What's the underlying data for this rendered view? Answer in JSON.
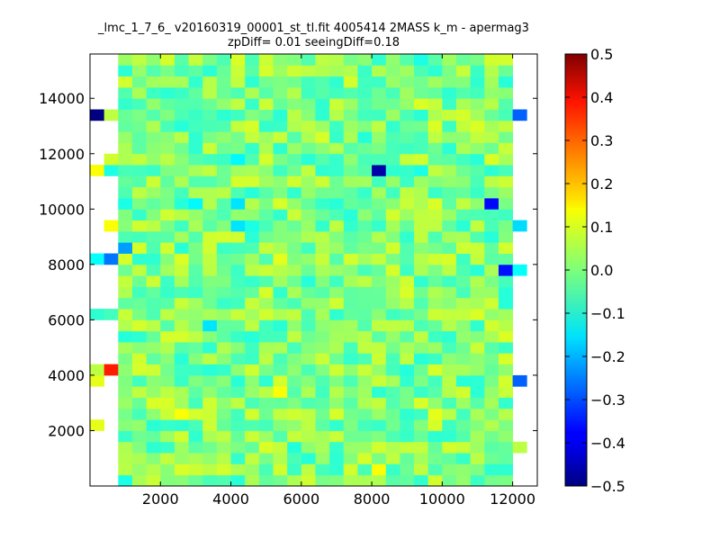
{
  "chart_data": {
    "type": "heatmap",
    "title_line1": "_lmc_1_7_6_ v20160319_00001_st_tl.fit 4005414 2MASS k_m - apermag3",
    "title_line2": "zpDiff= 0.01 seeingDiff=0.18",
    "xlabel": "",
    "ylabel": "",
    "xlim": [
      0,
      12700
    ],
    "ylim": [
      0,
      15600
    ],
    "xticks": [
      "2000",
      "4000",
      "6000",
      "8000",
      "10000",
      "12000"
    ],
    "yticks": [
      "2000",
      "4000",
      "6000",
      "8000",
      "10000",
      "12000",
      "14000"
    ],
    "grid": false,
    "colorbar": {
      "colormap": "jet",
      "range": [
        -0.5,
        0.5
      ],
      "ticks": [
        "0.5",
        "0.4",
        "0.3",
        "0.2",
        "0.1",
        "0.0",
        "−0.1",
        "−0.2",
        "−0.3",
        "−0.4",
        "−0.5"
      ]
    },
    "cell_size": 400,
    "nx": 31,
    "ny": 39,
    "base_value": 0.0,
    "overrides": [
      {
        "x": 200,
        "y": 13400,
        "v": -0.5
      },
      {
        "x": 600,
        "y": 13400,
        "v": 0.06
      },
      {
        "x": 12200,
        "y": 13400,
        "v": -0.28
      },
      {
        "x": 200,
        "y": 11400,
        "v": 0.12
      },
      {
        "x": 600,
        "y": 11800,
        "v": 0.08
      },
      {
        "x": 8200,
        "y": 11400,
        "v": -0.46
      },
      {
        "x": 12600,
        "y": 11400,
        "v": 0.08
      },
      {
        "x": 12600,
        "y": 11800,
        "v": 0.1
      },
      {
        "x": 4200,
        "y": 10200,
        "v": -0.15
      },
      {
        "x": 4200,
        "y": 11800,
        "v": -0.13
      },
      {
        "x": 3000,
        "y": 10200,
        "v": -0.13
      },
      {
        "x": 11400,
        "y": 10200,
        "v": -0.37
      },
      {
        "x": 600,
        "y": 9400,
        "v": 0.12
      },
      {
        "x": 1000,
        "y": 10200,
        "v": -0.1
      },
      {
        "x": 4200,
        "y": 9400,
        "v": -0.15
      },
      {
        "x": 4600,
        "y": 9400,
        "v": -0.1
      },
      {
        "x": 12200,
        "y": 9400,
        "v": -0.16
      },
      {
        "x": 12600,
        "y": 9400,
        "v": 0.08
      },
      {
        "x": 1000,
        "y": 8600,
        "v": -0.22
      },
      {
        "x": 200,
        "y": 8200,
        "v": -0.12
      },
      {
        "x": 600,
        "y": 8200,
        "v": -0.26
      },
      {
        "x": 11800,
        "y": 7800,
        "v": -0.36
      },
      {
        "x": 12200,
        "y": 7800,
        "v": -0.12
      },
      {
        "x": 12600,
        "y": 7800,
        "v": -0.1
      },
      {
        "x": 5400,
        "y": 8200,
        "v": 0.1
      },
      {
        "x": 200,
        "y": 6200,
        "v": -0.08
      },
      {
        "x": 600,
        "y": 6200,
        "v": -0.06
      },
      {
        "x": 12600,
        "y": 6200,
        "v": 0.1
      },
      {
        "x": 3400,
        "y": 5800,
        "v": -0.15
      },
      {
        "x": 200,
        "y": 4200,
        "v": 0.06
      },
      {
        "x": 600,
        "y": 4200,
        "v": 0.35
      },
      {
        "x": 200,
        "y": 3800,
        "v": 0.1
      },
      {
        "x": 12200,
        "y": 3800,
        "v": -0.28
      },
      {
        "x": 4800,
        "y": 2600,
        "v": -0.18
      },
      {
        "x": 200,
        "y": 2200,
        "v": 0.1
      },
      {
        "x": 5400,
        "y": 3400,
        "v": 0.12
      },
      {
        "x": 2600,
        "y": 2600,
        "v": 0.12
      },
      {
        "x": 9800,
        "y": 2600,
        "v": 0.1
      },
      {
        "x": 8200,
        "y": 600,
        "v": 0.12
      },
      {
        "x": 1000,
        "y": 200,
        "v": -0.1
      },
      {
        "x": 12200,
        "y": 1400,
        "v": 0.06
      },
      {
        "x": 9400,
        "y": 15400,
        "v": -0.1
      },
      {
        "x": 11400,
        "y": 15400,
        "v": 0.08
      },
      {
        "x": 8600,
        "y": 11400,
        "v": -0.08
      },
      {
        "x": 9400,
        "y": 11400,
        "v": -0.1
      },
      {
        "x": 11400,
        "y": 11400,
        "v": -0.08
      },
      {
        "x": 600,
        "y": 11400,
        "v": -0.1
      },
      {
        "x": 12600,
        "y": 3400,
        "v": 0.0
      }
    ]
  }
}
